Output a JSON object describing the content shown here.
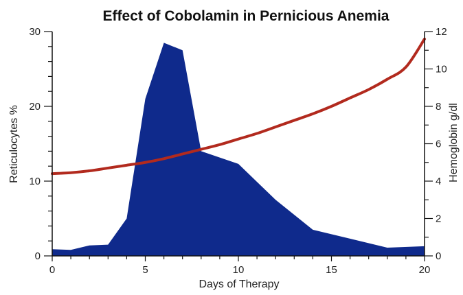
{
  "chart_data": {
    "type": "area",
    "title": "Effect of Cobolamin in Pernicious Anemia",
    "xlabel": "Days of Therapy",
    "ylabel_left": "Reticulocytes %",
    "ylabel_right": "Hemoglobin g/dl",
    "xlim": [
      0,
      20
    ],
    "ylim_left": [
      0,
      30
    ],
    "ylim_right": [
      0,
      12
    ],
    "x_ticks": [
      0,
      5,
      10,
      15,
      20
    ],
    "y_left_ticks": [
      0,
      10,
      20,
      30
    ],
    "y_right_ticks": [
      0,
      2,
      4,
      6,
      8,
      10,
      12
    ],
    "grid": false,
    "legend": "none",
    "series": [
      {
        "axis": "left",
        "style": "area",
        "color": "#0f2a8c",
        "points": [
          [
            0,
            0.9
          ],
          [
            1,
            0.8
          ],
          [
            2,
            1.4
          ],
          [
            3,
            1.5
          ],
          [
            4,
            5.0
          ],
          [
            5,
            21.0
          ],
          [
            6,
            28.5
          ],
          [
            7,
            27.5
          ],
          [
            8,
            14.0
          ],
          [
            10,
            12.3
          ],
          [
            12,
            7.5
          ],
          [
            14,
            3.5
          ],
          [
            18,
            1.1
          ],
          [
            20,
            1.3
          ]
        ]
      },
      {
        "axis": "right",
        "style": "line",
        "color": "#b22a1e",
        "points": [
          [
            0,
            4.4
          ],
          [
            1,
            4.45
          ],
          [
            2,
            4.55
          ],
          [
            3,
            4.7
          ],
          [
            4,
            4.85
          ],
          [
            5,
            5.0
          ],
          [
            6,
            5.2
          ],
          [
            7,
            5.45
          ],
          [
            8,
            5.7
          ],
          [
            9,
            5.95
          ],
          [
            10,
            6.25
          ],
          [
            11,
            6.55
          ],
          [
            12,
            6.9
          ],
          [
            13,
            7.25
          ],
          [
            14,
            7.6
          ],
          [
            15,
            8.0
          ],
          [
            16,
            8.45
          ],
          [
            17,
            8.9
          ],
          [
            18,
            9.45
          ],
          [
            19,
            10.1
          ],
          [
            20,
            11.6
          ]
        ]
      }
    ]
  }
}
